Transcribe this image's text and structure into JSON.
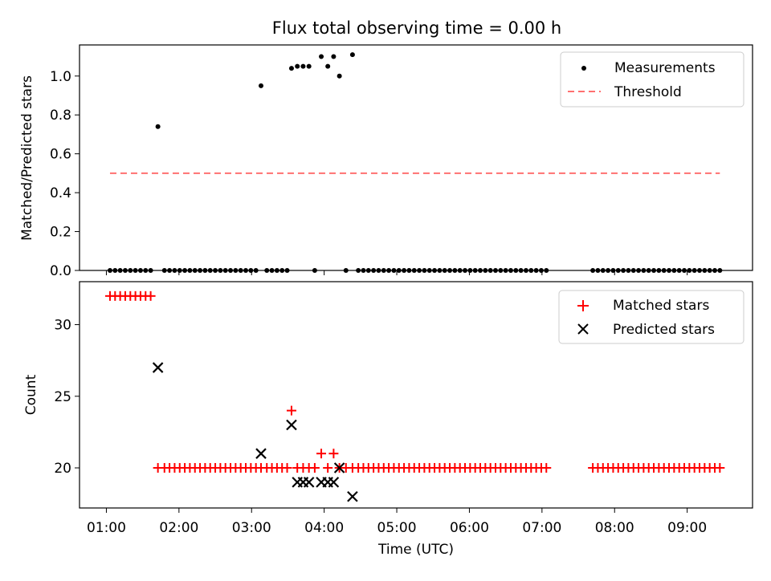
{
  "chart_data": [
    {
      "type": "scatter",
      "title": "Flux total observing time = 0.00 h",
      "xlabel": "",
      "ylabel": "Matched/Predicted stars",
      "xlim_hours": [
        0.63,
        9.9
      ],
      "ylim": [
        0.0,
        1.16
      ],
      "yticks": [
        0.0,
        0.2,
        0.4,
        0.6,
        0.8,
        1.0
      ],
      "ytick_labels": [
        "0.0",
        "0.2",
        "0.4",
        "0.6",
        "0.8",
        "1.0"
      ],
      "legend_position": "top-right",
      "series": [
        {
          "name": "Measurements",
          "marker": "dot",
          "color": "#000000",
          "points": [
            [
              1.05,
              0
            ],
            [
              1.12,
              0
            ],
            [
              1.19,
              0
            ],
            [
              1.26,
              0
            ],
            [
              1.33,
              0
            ],
            [
              1.4,
              0
            ],
            [
              1.47,
              0
            ],
            [
              1.54,
              0
            ],
            [
              1.61,
              0
            ],
            [
              1.71,
              0.74
            ],
            [
              1.8,
              0
            ],
            [
              1.87,
              0
            ],
            [
              1.94,
              0
            ],
            [
              2.01,
              0
            ],
            [
              2.08,
              0
            ],
            [
              2.15,
              0
            ],
            [
              2.22,
              0
            ],
            [
              2.29,
              0
            ],
            [
              2.36,
              0
            ],
            [
              2.43,
              0
            ],
            [
              2.5,
              0
            ],
            [
              2.57,
              0
            ],
            [
              2.64,
              0
            ],
            [
              2.71,
              0
            ],
            [
              2.78,
              0
            ],
            [
              2.85,
              0
            ],
            [
              2.92,
              0
            ],
            [
              2.99,
              0
            ],
            [
              3.06,
              0
            ],
            [
              3.13,
              0.95
            ],
            [
              3.21,
              0
            ],
            [
              3.28,
              0
            ],
            [
              3.35,
              0
            ],
            [
              3.42,
              0
            ],
            [
              3.49,
              0
            ],
            [
              3.55,
              1.04
            ],
            [
              3.63,
              1.05
            ],
            [
              3.71,
              1.05
            ],
            [
              3.79,
              1.05
            ],
            [
              3.87,
              0
            ],
            [
              3.96,
              1.1
            ],
            [
              4.05,
              1.05
            ],
            [
              4.13,
              1.1
            ],
            [
              4.21,
              1.0
            ],
            [
              4.3,
              0
            ],
            [
              4.39,
              1.11
            ],
            [
              4.47,
              0
            ],
            [
              4.54,
              0
            ],
            [
              4.61,
              0
            ],
            [
              4.68,
              0
            ],
            [
              4.75,
              0
            ],
            [
              4.82,
              0
            ],
            [
              4.89,
              0
            ],
            [
              4.96,
              0
            ],
            [
              5.03,
              0
            ],
            [
              5.1,
              0
            ],
            [
              5.17,
              0
            ],
            [
              5.24,
              0
            ],
            [
              5.31,
              0
            ],
            [
              5.38,
              0
            ],
            [
              5.45,
              0
            ],
            [
              5.52,
              0
            ],
            [
              5.59,
              0
            ],
            [
              5.66,
              0
            ],
            [
              5.73,
              0
            ],
            [
              5.8,
              0
            ],
            [
              5.87,
              0
            ],
            [
              5.94,
              0
            ],
            [
              6.01,
              0
            ],
            [
              6.08,
              0
            ],
            [
              6.15,
              0
            ],
            [
              6.22,
              0
            ],
            [
              6.29,
              0
            ],
            [
              6.36,
              0
            ],
            [
              6.43,
              0
            ],
            [
              6.5,
              0
            ],
            [
              6.57,
              0
            ],
            [
              6.64,
              0
            ],
            [
              6.71,
              0
            ],
            [
              6.78,
              0
            ],
            [
              6.85,
              0
            ],
            [
              6.92,
              0
            ],
            [
              6.99,
              0
            ],
            [
              7.06,
              0
            ],
            [
              7.7,
              0
            ],
            [
              7.77,
              0
            ],
            [
              7.84,
              0
            ],
            [
              7.91,
              0
            ],
            [
              7.98,
              0
            ],
            [
              8.05,
              0
            ],
            [
              8.12,
              0
            ],
            [
              8.19,
              0
            ],
            [
              8.26,
              0
            ],
            [
              8.33,
              0
            ],
            [
              8.4,
              0
            ],
            [
              8.47,
              0
            ],
            [
              8.54,
              0
            ],
            [
              8.61,
              0
            ],
            [
              8.68,
              0
            ],
            [
              8.75,
              0
            ],
            [
              8.82,
              0
            ],
            [
              8.89,
              0
            ],
            [
              8.96,
              0
            ],
            [
              9.03,
              0
            ],
            [
              9.1,
              0
            ],
            [
              9.17,
              0
            ],
            [
              9.24,
              0
            ],
            [
              9.31,
              0
            ],
            [
              9.38,
              0
            ],
            [
              9.45,
              0
            ]
          ]
        },
        {
          "name": "Threshold",
          "marker": "dashed-line",
          "color": "#ff7070",
          "points": [
            [
              1.05,
              0.5
            ],
            [
              9.45,
              0.5
            ]
          ]
        }
      ]
    },
    {
      "type": "scatter",
      "title": "",
      "xlabel": "Time (UTC)",
      "ylabel": "Count",
      "xlim_hours": [
        0.63,
        9.9
      ],
      "ylim": [
        17.2,
        33.0
      ],
      "yticks": [
        20,
        25,
        30
      ],
      "ytick_labels": [
        "20",
        "25",
        "30"
      ],
      "xticks_hours": [
        1,
        2,
        3,
        4,
        5,
        6,
        7,
        8,
        9
      ],
      "xtick_labels": [
        "01:00",
        "02:00",
        "03:00",
        "04:00",
        "05:00",
        "06:00",
        "07:00",
        "08:00",
        "09:00"
      ],
      "legend_position": "top-right",
      "series": [
        {
          "name": "Matched stars",
          "marker": "plus",
          "color": "#ff0000",
          "points": [
            [
              1.05,
              32
            ],
            [
              1.12,
              32
            ],
            [
              1.19,
              32
            ],
            [
              1.26,
              32
            ],
            [
              1.33,
              32
            ],
            [
              1.4,
              32
            ],
            [
              1.47,
              32
            ],
            [
              1.54,
              32
            ],
            [
              1.61,
              32
            ],
            [
              1.71,
              20
            ],
            [
              1.8,
              20
            ],
            [
              1.87,
              20
            ],
            [
              1.94,
              20
            ],
            [
              2.01,
              20
            ],
            [
              2.08,
              20
            ],
            [
              2.15,
              20
            ],
            [
              2.22,
              20
            ],
            [
              2.29,
              20
            ],
            [
              2.36,
              20
            ],
            [
              2.43,
              20
            ],
            [
              2.5,
              20
            ],
            [
              2.57,
              20
            ],
            [
              2.64,
              20
            ],
            [
              2.71,
              20
            ],
            [
              2.78,
              20
            ],
            [
              2.85,
              20
            ],
            [
              2.92,
              20
            ],
            [
              2.99,
              20
            ],
            [
              3.06,
              20
            ],
            [
              3.13,
              20
            ],
            [
              3.21,
              20
            ],
            [
              3.28,
              20
            ],
            [
              3.35,
              20
            ],
            [
              3.42,
              20
            ],
            [
              3.49,
              20
            ],
            [
              3.55,
              24
            ],
            [
              3.63,
              20
            ],
            [
              3.71,
              20
            ],
            [
              3.79,
              20
            ],
            [
              3.87,
              20
            ],
            [
              3.96,
              21
            ],
            [
              4.05,
              20
            ],
            [
              4.13,
              21
            ],
            [
              4.21,
              20
            ],
            [
              4.3,
              20
            ],
            [
              4.39,
              20
            ],
            [
              4.47,
              20
            ],
            [
              4.54,
              20
            ],
            [
              4.61,
              20
            ],
            [
              4.68,
              20
            ],
            [
              4.75,
              20
            ],
            [
              4.82,
              20
            ],
            [
              4.89,
              20
            ],
            [
              4.96,
              20
            ],
            [
              5.03,
              20
            ],
            [
              5.1,
              20
            ],
            [
              5.17,
              20
            ],
            [
              5.24,
              20
            ],
            [
              5.31,
              20
            ],
            [
              5.38,
              20
            ],
            [
              5.45,
              20
            ],
            [
              5.52,
              20
            ],
            [
              5.59,
              20
            ],
            [
              5.66,
              20
            ],
            [
              5.73,
              20
            ],
            [
              5.8,
              20
            ],
            [
              5.87,
              20
            ],
            [
              5.94,
              20
            ],
            [
              6.01,
              20
            ],
            [
              6.08,
              20
            ],
            [
              6.15,
              20
            ],
            [
              6.22,
              20
            ],
            [
              6.29,
              20
            ],
            [
              6.36,
              20
            ],
            [
              6.43,
              20
            ],
            [
              6.5,
              20
            ],
            [
              6.57,
              20
            ],
            [
              6.64,
              20
            ],
            [
              6.71,
              20
            ],
            [
              6.78,
              20
            ],
            [
              6.85,
              20
            ],
            [
              6.92,
              20
            ],
            [
              6.99,
              20
            ],
            [
              7.06,
              20
            ],
            [
              7.7,
              20
            ],
            [
              7.77,
              20
            ],
            [
              7.84,
              20
            ],
            [
              7.91,
              20
            ],
            [
              7.98,
              20
            ],
            [
              8.05,
              20
            ],
            [
              8.12,
              20
            ],
            [
              8.19,
              20
            ],
            [
              8.26,
              20
            ],
            [
              8.33,
              20
            ],
            [
              8.4,
              20
            ],
            [
              8.47,
              20
            ],
            [
              8.54,
              20
            ],
            [
              8.61,
              20
            ],
            [
              8.68,
              20
            ],
            [
              8.75,
              20
            ],
            [
              8.82,
              20
            ],
            [
              8.89,
              20
            ],
            [
              8.96,
              20
            ],
            [
              9.03,
              20
            ],
            [
              9.1,
              20
            ],
            [
              9.17,
              20
            ],
            [
              9.24,
              20
            ],
            [
              9.31,
              20
            ],
            [
              9.38,
              20
            ],
            [
              9.45,
              20
            ]
          ]
        },
        {
          "name": "Predicted stars",
          "marker": "x",
          "color": "#000000",
          "points": [
            [
              1.71,
              27
            ],
            [
              3.13,
              21
            ],
            [
              3.55,
              23
            ],
            [
              3.63,
              19
            ],
            [
              3.71,
              19
            ],
            [
              3.79,
              19
            ],
            [
              3.96,
              19
            ],
            [
              4.05,
              19
            ],
            [
              4.13,
              19
            ],
            [
              4.21,
              20
            ],
            [
              4.39,
              18
            ]
          ]
        }
      ]
    }
  ]
}
